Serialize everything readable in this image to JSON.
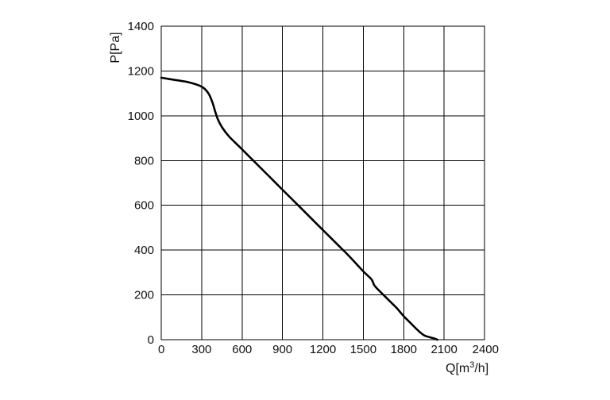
{
  "chart_data": {
    "type": "line",
    "xlabel": "Q[m³/h]",
    "ylabel": "P[Pa]",
    "xlim": [
      0,
      2400
    ],
    "ylim": [
      0,
      1400
    ],
    "xticks": [
      0,
      300,
      600,
      900,
      1200,
      1500,
      1800,
      2100,
      2400
    ],
    "yticks": [
      0,
      200,
      400,
      600,
      800,
      1000,
      1200,
      1400
    ],
    "grid": true,
    "legend": "none",
    "series": [
      {
        "color": "#000000",
        "x": [
          0,
          100,
          200,
          300,
          350,
          380,
          400,
          420,
          450,
          500,
          600,
          700,
          800,
          900,
          1000,
          1100,
          1200,
          1300,
          1400,
          1500,
          1560,
          1580,
          1600,
          1650,
          1700,
          1750,
          1800,
          1850,
          1900,
          1950,
          2000,
          2030,
          2050
        ],
        "y": [
          1170,
          1160,
          1150,
          1130,
          1100,
          1060,
          1020,
          985,
          950,
          910,
          850,
          790,
          730,
          670,
          610,
          550,
          490,
          430,
          370,
          305,
          270,
          245,
          230,
          200,
          170,
          140,
          105,
          75,
          45,
          20,
          10,
          5,
          0
        ]
      }
    ]
  }
}
